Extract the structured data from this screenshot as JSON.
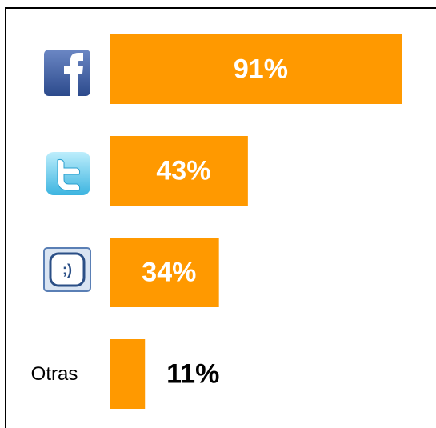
{
  "chart_data": {
    "type": "bar",
    "orientation": "horizontal",
    "categories": [
      null,
      null,
      null,
      "Otras"
    ],
    "values": [
      91,
      43,
      34,
      11
    ],
    "value_labels": [
      "91%",
      "43%",
      "34%",
      "11%"
    ],
    "color": "#ff9900"
  }
}
